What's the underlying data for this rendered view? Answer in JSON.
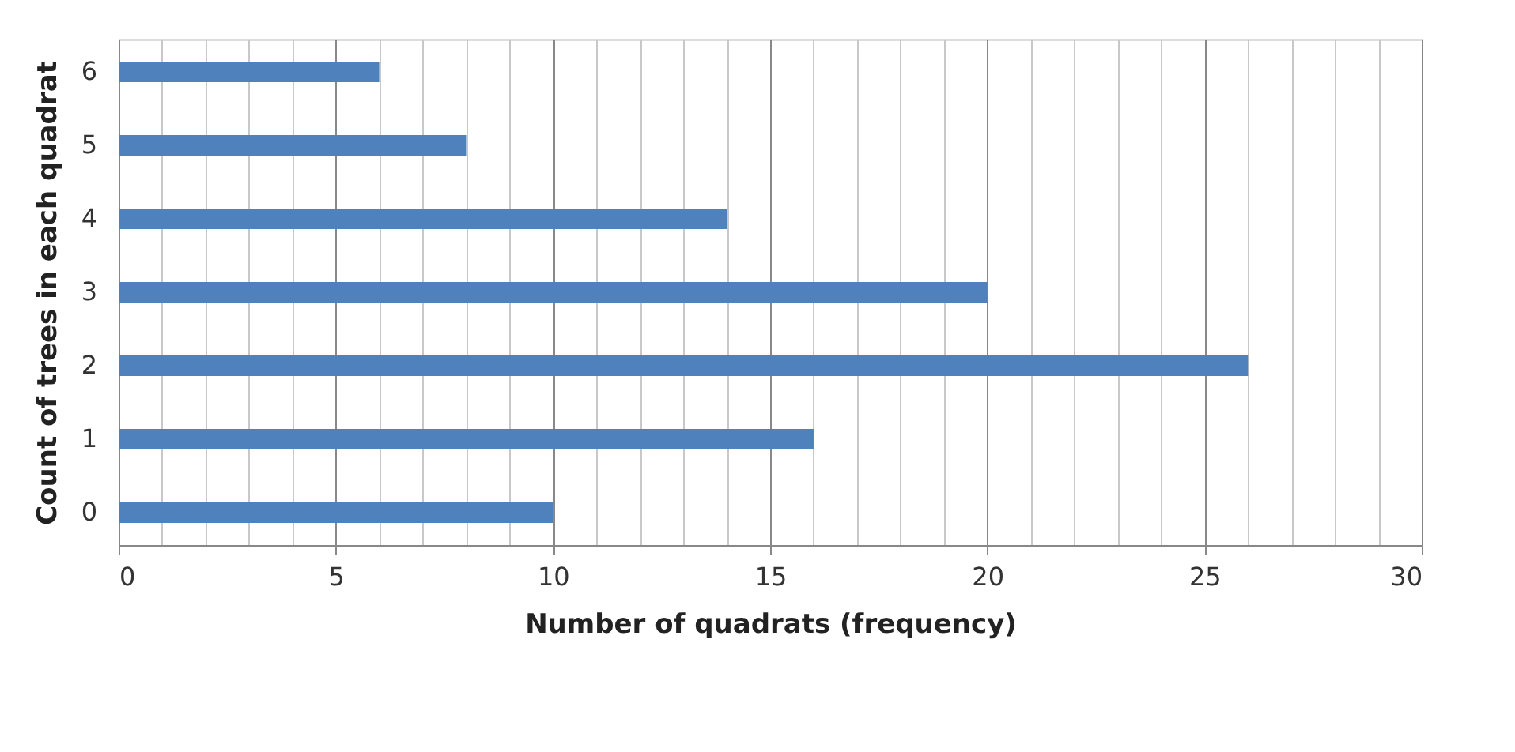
{
  "chart_data": {
    "type": "bar",
    "orientation": "horizontal",
    "xlabel": "Number of quadrats (frequency)",
    "ylabel": "Count of trees in each quadrat",
    "categories": [
      "6",
      "5",
      "4",
      "3",
      "2",
      "1",
      "0"
    ],
    "values": [
      6,
      8,
      14,
      20,
      26,
      16,
      10
    ],
    "color": "#4f81bd",
    "xlim": [
      0,
      30
    ],
    "xticks": [
      0,
      {
        "value": 1,
        "label": null
      },
      {
        "value": 2,
        "label": null
      },
      {
        "value": 3,
        "label": null
      },
      {
        "value": 4,
        "label": null
      },
      5,
      {
        "value": 6,
        "label": null
      },
      {
        "value": 7,
        "label": null
      },
      {
        "value": 8,
        "label": null
      },
      {
        "value": 9,
        "label": null
      },
      10,
      {
        "value": 11,
        "label": null
      },
      {
        "value": 12,
        "label": null
      },
      {
        "value": 13,
        "label": null
      },
      {
        "value": 14,
        "label": null
      },
      15,
      {
        "value": 16,
        "label": null
      },
      {
        "value": 17,
        "label": null
      },
      {
        "value": 18,
        "label": null
      },
      {
        "value": 19,
        "label": null
      },
      20,
      {
        "value": 21,
        "label": null
      },
      {
        "value": 22,
        "label": null
      },
      {
        "value": 23,
        "label": null
      },
      {
        "value": 24,
        "label": null
      },
      25,
      {
        "value": 26,
        "label": null
      },
      {
        "value": 27,
        "label": null
      },
      {
        "value": 28,
        "label": null
      },
      {
        "value": 29,
        "label": null
      },
      30
    ],
    "grid": "x"
  }
}
